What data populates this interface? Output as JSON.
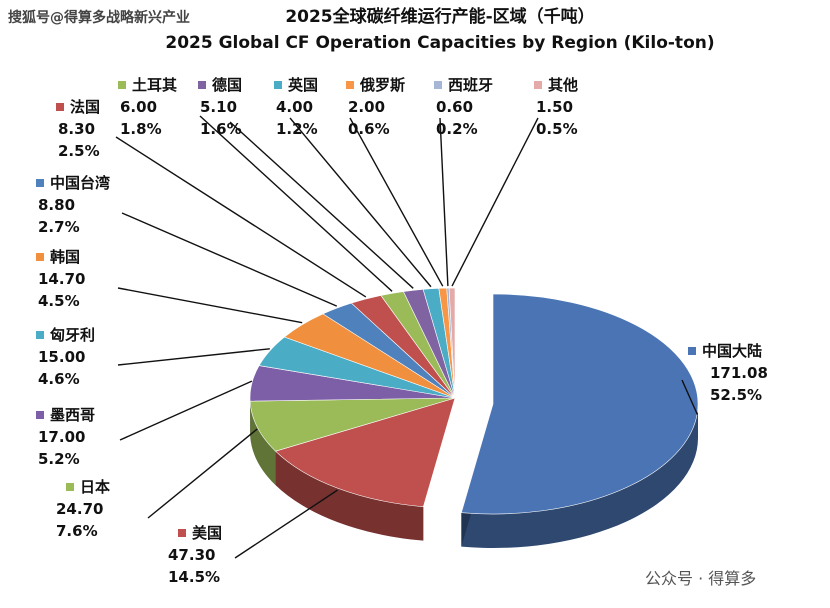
{
  "watermark_top": "搜狐号@得算多战略新兴产业",
  "watermark_bottom": "公众号 · 得算多",
  "chart_data": {
    "type": "pie",
    "title": "2025全球碳纤维运行产能-区域（千吨）",
    "subtitle": "2025 Global CF Operation Capacities by Region (Kilo-ton)",
    "slices": [
      {
        "name": "中国大陆",
        "value": 171.08,
        "value_label": "171.08",
        "percent": "52.5%",
        "color": "#4a74b4"
      },
      {
        "name": "美国",
        "value": 47.3,
        "value_label": "47.30",
        "percent": "14.5%",
        "color": "#c0504d"
      },
      {
        "name": "日本",
        "value": 24.7,
        "value_label": "24.70",
        "percent": "7.6%",
        "color": "#9bbb59"
      },
      {
        "name": "墨西哥",
        "value": 17.0,
        "value_label": "17.00",
        "percent": "5.2%",
        "color": "#7c5fa6"
      },
      {
        "name": "匈牙利",
        "value": 15.0,
        "value_label": "15.00",
        "percent": "4.6%",
        "color": "#4bacc6"
      },
      {
        "name": "韩国",
        "value": 14.7,
        "value_label": "14.70",
        "percent": "4.5%",
        "color": "#f0903e"
      },
      {
        "name": "中国台湾",
        "value": 8.8,
        "value_label": "8.80",
        "percent": "2.7%",
        "color": "#4f81bd"
      },
      {
        "name": "法国",
        "value": 8.3,
        "value_label": "8.30",
        "percent": "2.5%",
        "color": "#c0504d"
      },
      {
        "name": "土耳其",
        "value": 6.0,
        "value_label": "6.00",
        "percent": "1.8%",
        "color": "#9bbb59"
      },
      {
        "name": "德国",
        "value": 5.1,
        "value_label": "5.10",
        "percent": "1.6%",
        "color": "#8064a2"
      },
      {
        "name": "英国",
        "value": 4.0,
        "value_label": "4.00",
        "percent": "1.2%",
        "color": "#4bacc6"
      },
      {
        "name": "俄罗斯",
        "value": 2.0,
        "value_label": "2.00",
        "percent": "0.6%",
        "color": "#f79646"
      },
      {
        "name": "西班牙",
        "value": 0.6,
        "value_label": "0.60",
        "percent": "0.2%",
        "color": "#a5b6d6"
      },
      {
        "name": "其他",
        "value": 1.5,
        "value_label": "1.50",
        "percent": "0.5%",
        "color": "#e3aaa8"
      }
    ]
  }
}
